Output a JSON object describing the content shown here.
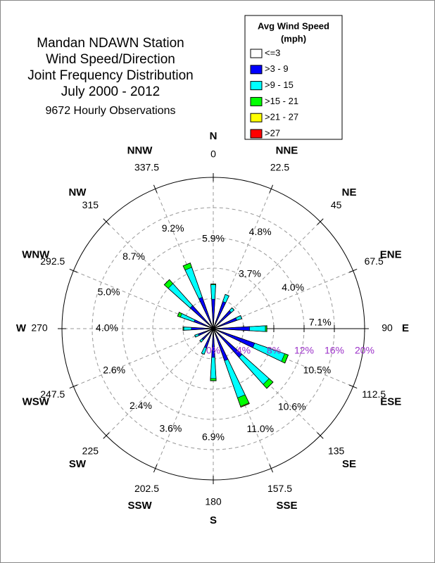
{
  "chart_data": {
    "type": "windrose",
    "title_lines": [
      "Mandan NDAWN Station",
      "Wind Speed/Direction",
      "Joint Frequency Distribution",
      "July 2000 - 2012"
    ],
    "subtitle": "9672 Hourly Observations",
    "legend_title": [
      "Avg Wind Speed",
      "(mph)"
    ],
    "directions": [
      "N",
      "NNE",
      "NE",
      "ENE",
      "E",
      "ESE",
      "SE",
      "SSE",
      "S",
      "SSW",
      "SW",
      "WSW",
      "W",
      "WNW",
      "NW",
      "NNW"
    ],
    "angles": [
      0,
      22.5,
      45,
      67.5,
      90,
      112.5,
      135,
      157.5,
      180,
      202.5,
      225,
      247.5,
      270,
      292.5,
      315,
      337.5
    ],
    "totals": [
      5.9,
      4.8,
      3.7,
      4.0,
      7.1,
      10.5,
      10.6,
      11.0,
      6.9,
      3.6,
      2.4,
      2.6,
      4.0,
      5.0,
      8.7,
      9.2
    ],
    "total_labels": [
      "5.9%",
      "4.8%",
      "3.7%",
      "4.0%",
      "7.1%",
      "10.5%",
      "10.6%",
      "11.0%",
      "6.9%",
      "3.6%",
      "2.4%",
      "2.6%",
      "4.0%",
      "5.0%",
      "8.7%",
      "9.2%"
    ],
    "series": [
      {
        "name": "<=3",
        "color": "#ffffff",
        "values": [
          0.3,
          0.3,
          0.3,
          0.3,
          0.3,
          0.3,
          0.3,
          0.3,
          0.3,
          0.3,
          0.3,
          0.3,
          0.3,
          0.3,
          0.3,
          0.3
        ]
      },
      {
        "name": ">3 - 9",
        "color": "#0000ff",
        "values": [
          3.6,
          3.5,
          2.9,
          3.0,
          4.5,
          5.5,
          4.8,
          4.2,
          3.5,
          2.4,
          1.7,
          1.8,
          2.6,
          2.4,
          3.8,
          4.1
        ]
      },
      {
        "name": ">9 - 15",
        "color": "#00ffff",
        "values": [
          1.9,
          1.0,
          0.5,
          0.7,
          2.1,
          4.2,
          4.8,
          5.2,
          2.8,
          0.9,
          0.4,
          0.5,
          1.0,
          1.9,
          3.9,
          4.2
        ]
      },
      {
        "name": ">15 - 21",
        "color": "#00ff00",
        "values": [
          0.1,
          0,
          0,
          0,
          0.2,
          0.5,
          0.7,
          1.2,
          0.3,
          0,
          0,
          0,
          0.1,
          0.4,
          0.7,
          0.6
        ]
      },
      {
        "name": ">21 - 27",
        "color": "#ffff00",
        "values": [
          0,
          0,
          0,
          0,
          0,
          0,
          0,
          0.1,
          0,
          0,
          0,
          0,
          0,
          0,
          0,
          0
        ]
      },
      {
        "name": ">27",
        "color": "#ff0000",
        "values": [
          0,
          0,
          0,
          0,
          0,
          0,
          0,
          0,
          0,
          0,
          0,
          0,
          0,
          0,
          0,
          0
        ]
      }
    ],
    "rlim": [
      0,
      20
    ],
    "rticks": [
      {
        "value": 0,
        "label": "0%"
      },
      {
        "value": 4,
        "label": "4%"
      },
      {
        "value": 8,
        "label": "8%"
      },
      {
        "value": 12,
        "label": "12%"
      },
      {
        "value": 16,
        "label": "16%"
      },
      {
        "value": 20,
        "label": "20%"
      }
    ]
  }
}
